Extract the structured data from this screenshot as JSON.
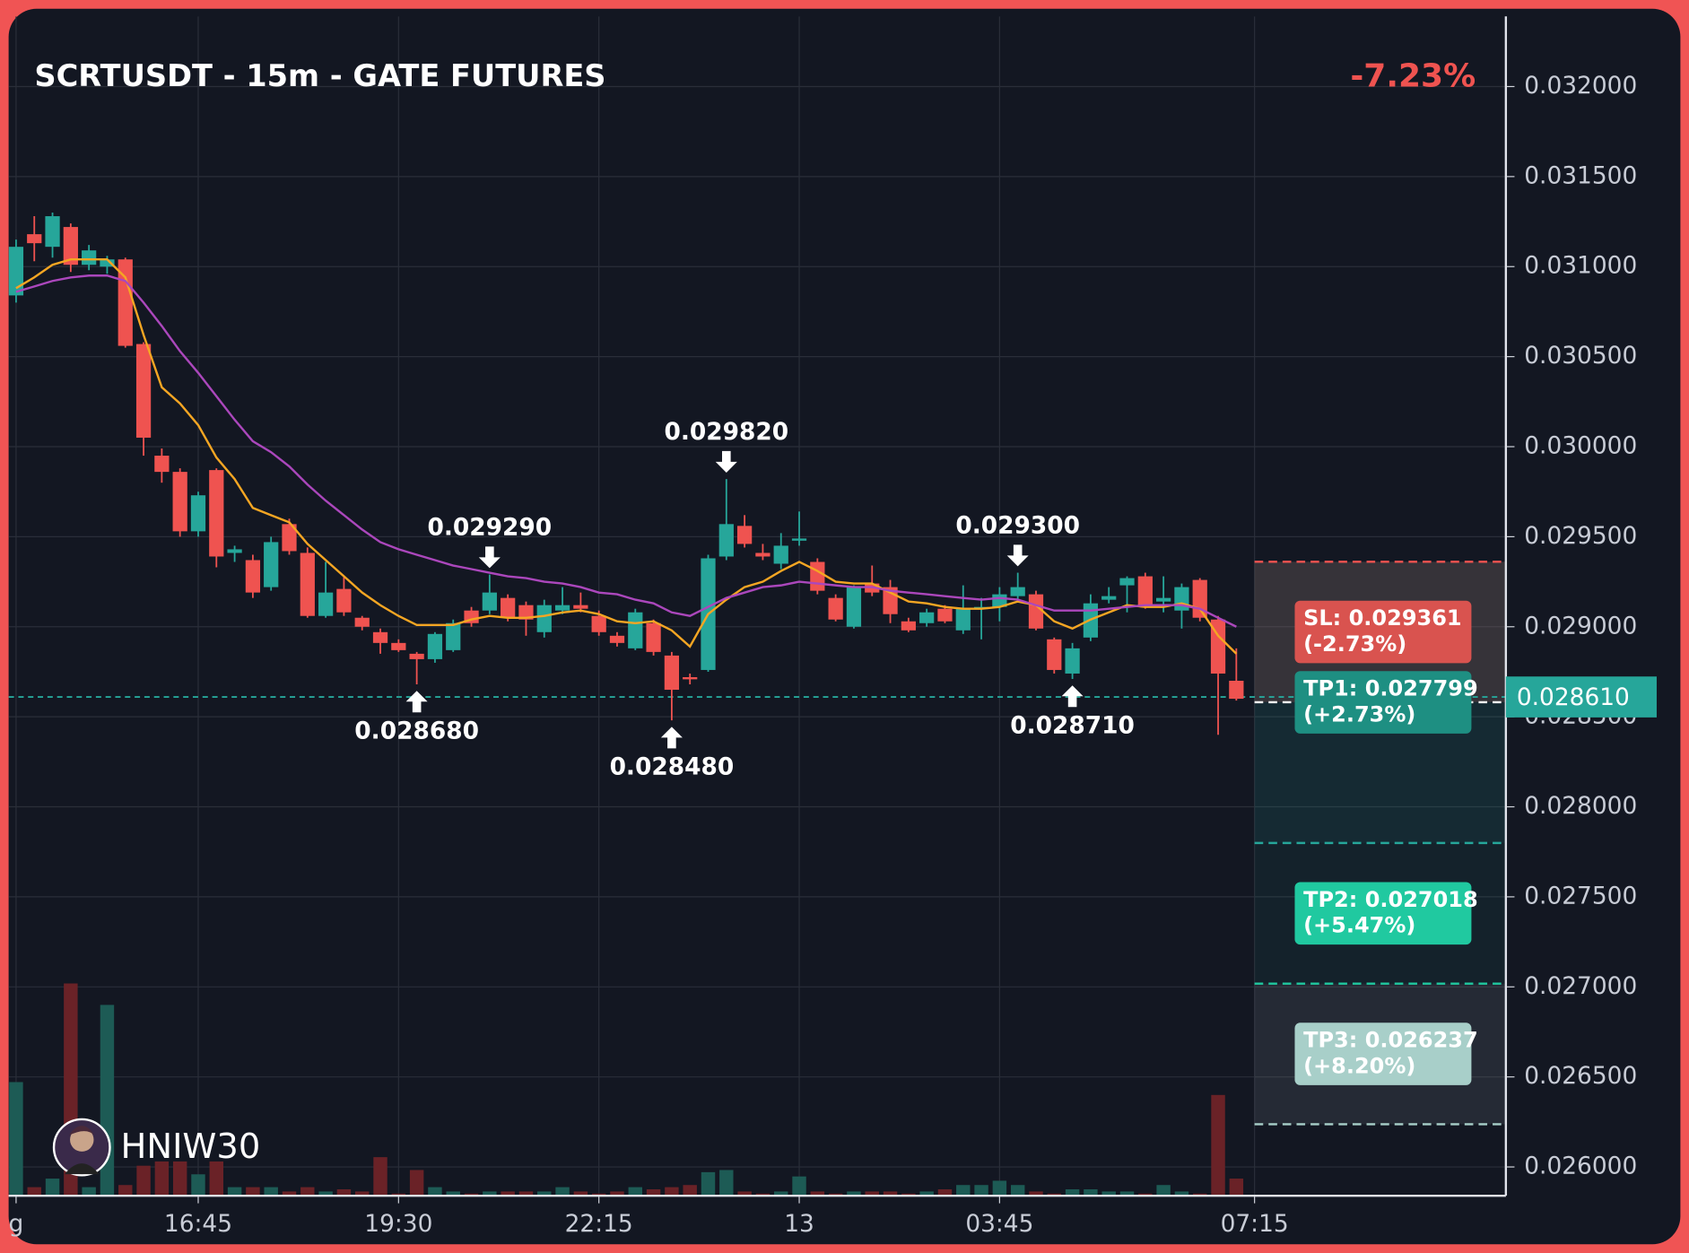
{
  "chart_data": {
    "type": "candlestick",
    "title": "SCRTUSDT - 15m - GATE FUTURES",
    "change": "-7.23%",
    "watermark": "HNIW30",
    "up_color": "#26a69a",
    "down_color": "#ef5350",
    "volume_up_color": "#1d5b55",
    "volume_down_color": "#6a2227",
    "grid": true,
    "xlim": [
      -0.41,
      81.8
    ],
    "xticks": [
      {
        "value": 0,
        "label": "g"
      },
      {
        "value": 10,
        "label": "16:45"
      },
      {
        "value": 21,
        "label": "19:30"
      },
      {
        "value": 32,
        "label": "22:15"
      },
      {
        "value": 43,
        "label": "13"
      },
      {
        "value": 54,
        "label": "03:45"
      },
      {
        "value": 68,
        "label": "07:15"
      }
    ],
    "ylim": [
      0.02584,
      0.03239
    ],
    "yticks": [
      {
        "value": 0.026,
        "label": "0.026000"
      },
      {
        "value": 0.0265,
        "label": "0.026500"
      },
      {
        "value": 0.027,
        "label": "0.027000"
      },
      {
        "value": 0.0275,
        "label": "0.027500"
      },
      {
        "value": 0.028,
        "label": "0.028000"
      },
      {
        "value": 0.0285,
        "label": "0.028500"
      },
      {
        "value": 0.029,
        "label": "0.029000"
      },
      {
        "value": 0.0295,
        "label": "0.029500"
      },
      {
        "value": 0.03,
        "label": "0.030000"
      },
      {
        "value": 0.0305,
        "label": "0.030500"
      },
      {
        "value": 0.031,
        "label": "0.031000"
      },
      {
        "value": 0.0315,
        "label": "0.031500"
      },
      {
        "value": 0.032,
        "label": "0.032000"
      }
    ],
    "candles": {
      "open": [
        0.03084,
        0.03118,
        0.03111,
        0.03122,
        0.03101,
        0.031,
        0.03104,
        0.03057,
        0.02995,
        0.02986,
        0.02953,
        0.02987,
        0.02941,
        0.02937,
        0.02922,
        0.02957,
        0.02941,
        0.02906,
        0.02921,
        0.02905,
        0.02897,
        0.02891,
        0.02885,
        0.02882,
        0.02887,
        0.02909,
        0.02909,
        0.02916,
        0.02912,
        0.02897,
        0.02909,
        0.02912,
        0.02906,
        0.02895,
        0.02888,
        0.02902,
        0.02884,
        0.02872,
        0.02876,
        0.02939,
        0.02956,
        0.02941,
        0.02935,
        0.02948,
        0.02936,
        0.02916,
        0.029,
        0.02924,
        0.02922,
        0.02903,
        0.02902,
        0.0291,
        0.02898,
        0.0291,
        0.02911,
        0.02917,
        0.02918,
        0.02893,
        0.02874,
        0.02894,
        0.02915,
        0.02923,
        0.02928,
        0.02914,
        0.02909,
        0.02926,
        0.02904,
        0.0287
      ],
      "high": [
        0.03115,
        0.03128,
        0.0313,
        0.03124,
        0.03112,
        0.03106,
        0.03105,
        0.03058,
        0.02999,
        0.02988,
        0.02975,
        0.02988,
        0.02945,
        0.0294,
        0.0295,
        0.0296,
        0.02944,
        0.02936,
        0.02928,
        0.02906,
        0.02899,
        0.02893,
        0.02886,
        0.02897,
        0.02904,
        0.02911,
        0.02929,
        0.02918,
        0.02914,
        0.02915,
        0.02922,
        0.02919,
        0.02909,
        0.02897,
        0.0291,
        0.02904,
        0.02886,
        0.02874,
        0.0294,
        0.02982,
        0.02962,
        0.02946,
        0.02952,
        0.02964,
        0.02938,
        0.02918,
        0.02923,
        0.02934,
        0.02926,
        0.02905,
        0.0291,
        0.02912,
        0.02923,
        0.02916,
        0.02922,
        0.0293,
        0.0292,
        0.02894,
        0.02891,
        0.02918,
        0.02922,
        0.02928,
        0.0293,
        0.02928,
        0.02924,
        0.02927,
        0.02906,
        0.02888
      ],
      "low": [
        0.0308,
        0.03103,
        0.03105,
        0.03097,
        0.03098,
        0.03096,
        0.03055,
        0.02995,
        0.0298,
        0.0295,
        0.0295,
        0.02933,
        0.02936,
        0.02916,
        0.0292,
        0.0294,
        0.02905,
        0.02905,
        0.02906,
        0.02898,
        0.02885,
        0.02886,
        0.02868,
        0.0288,
        0.02886,
        0.029,
        0.02907,
        0.02903,
        0.02895,
        0.02894,
        0.02907,
        0.02908,
        0.02895,
        0.02889,
        0.02887,
        0.02884,
        0.02848,
        0.02868,
        0.02875,
        0.02937,
        0.02944,
        0.02937,
        0.02932,
        0.02945,
        0.02918,
        0.02903,
        0.02899,
        0.02917,
        0.02902,
        0.02897,
        0.029,
        0.02902,
        0.02896,
        0.02893,
        0.02903,
        0.02915,
        0.02898,
        0.02874,
        0.02871,
        0.02892,
        0.02913,
        0.02908,
        0.0291,
        0.02908,
        0.02899,
        0.02903,
        0.0284,
        0.02859
      ],
      "close": [
        0.03111,
        0.03113,
        0.03128,
        0.03101,
        0.03109,
        0.03104,
        0.03056,
        0.03005,
        0.02986,
        0.02953,
        0.02973,
        0.02939,
        0.02943,
        0.02919,
        0.02947,
        0.02942,
        0.02906,
        0.02919,
        0.02908,
        0.029,
        0.02891,
        0.02887,
        0.02882,
        0.02896,
        0.02902,
        0.02902,
        0.02919,
        0.02905,
        0.02904,
        0.02912,
        0.02912,
        0.0291,
        0.02897,
        0.02891,
        0.02908,
        0.02886,
        0.02865,
        0.02871,
        0.02938,
        0.02957,
        0.02946,
        0.02939,
        0.02945,
        0.02949,
        0.0292,
        0.02904,
        0.02922,
        0.02919,
        0.02907,
        0.02898,
        0.02908,
        0.02903,
        0.0291,
        0.02911,
        0.02918,
        0.02922,
        0.02899,
        0.02876,
        0.02888,
        0.02913,
        0.02917,
        0.02927,
        0.02912,
        0.02916,
        0.02922,
        0.02905,
        0.02874,
        0.0286
      ],
      "volume": [
        53,
        4,
        8,
        99,
        4,
        89,
        5,
        14,
        16,
        16,
        10,
        16,
        4,
        4,
        4,
        2,
        4,
        2,
        3,
        2,
        18,
        1,
        12,
        4,
        2,
        1,
        2,
        2,
        2,
        2,
        4,
        2,
        1,
        2,
        4,
        3,
        4,
        5,
        11,
        12,
        2,
        1,
        2,
        9,
        2,
        1,
        2,
        2,
        2,
        1,
        2,
        3,
        5,
        5,
        7,
        5,
        2,
        1,
        3,
        3,
        2,
        2,
        1,
        5,
        2,
        1,
        47,
        8
      ]
    },
    "volume_ylim": [
      0,
      550
    ],
    "series": [
      {
        "color": "#f5a623",
        "values": [
          0.03088,
          0.03094,
          0.03101,
          0.03104,
          0.03104,
          0.03104,
          0.03094,
          0.03062,
          0.03033,
          0.03024,
          0.03012,
          0.02994,
          0.02982,
          0.02966,
          0.02962,
          0.02958,
          0.02946,
          0.02937,
          0.02928,
          0.02919,
          0.02912,
          0.02906,
          0.02901,
          0.02901,
          0.02901,
          0.02904,
          0.02906,
          0.02905,
          0.02905,
          0.02906,
          0.02908,
          0.02909,
          0.02907,
          0.02903,
          0.02902,
          0.02903,
          0.02898,
          0.02889,
          0.02907,
          0.02915,
          0.02922,
          0.02925,
          0.02931,
          0.02936,
          0.02931,
          0.02925,
          0.02924,
          0.02924,
          0.02919,
          0.02914,
          0.02913,
          0.02911,
          0.0291,
          0.0291,
          0.02911,
          0.02914,
          0.02912,
          0.02903,
          0.02899,
          0.02904,
          0.02908,
          0.02912,
          0.02911,
          0.02911,
          0.02913,
          0.0291,
          0.02895,
          0.02885
        ]
      },
      {
        "color": "#ab47bc",
        "values": [
          0.03086,
          0.03089,
          0.03092,
          0.03094,
          0.03095,
          0.03095,
          0.03092,
          0.0308,
          0.03067,
          0.03053,
          0.03041,
          0.03028,
          0.03015,
          0.03003,
          0.02997,
          0.02989,
          0.02979,
          0.0297,
          0.02962,
          0.02954,
          0.02947,
          0.02943,
          0.0294,
          0.02937,
          0.02934,
          0.02932,
          0.0293,
          0.02928,
          0.02927,
          0.02925,
          0.02924,
          0.02922,
          0.02919,
          0.02918,
          0.02915,
          0.02913,
          0.02908,
          0.02906,
          0.02911,
          0.02916,
          0.02919,
          0.02922,
          0.02923,
          0.02925,
          0.02924,
          0.02923,
          0.02922,
          0.02922,
          0.0292,
          0.02919,
          0.02918,
          0.02917,
          0.02916,
          0.02915,
          0.02916,
          0.02915,
          0.02912,
          0.02909,
          0.02909,
          0.02909,
          0.0291,
          0.02911,
          0.02912,
          0.02912,
          0.02912,
          0.0291,
          0.02905,
          0.029
        ]
      }
    ],
    "annotations": [
      {
        "value": 0.02868,
        "label": "0.028680",
        "candle": 22,
        "kind": "low"
      },
      {
        "value": 0.02929,
        "label": "0.029290",
        "candle": 26,
        "kind": "high"
      },
      {
        "value": 0.02848,
        "label": "0.028480",
        "candle": 36,
        "kind": "low"
      },
      {
        "value": 0.02982,
        "label": "0.029820",
        "candle": 39,
        "kind": "high"
      },
      {
        "value": 0.0293,
        "label": "0.029300",
        "candle": 55,
        "kind": "high"
      },
      {
        "value": 0.02871,
        "label": "0.028710",
        "candle": 58,
        "kind": "low"
      }
    ],
    "current_price": {
      "value": 0.02861,
      "label": "0.028610"
    },
    "entry": 0.028581,
    "levels": [
      {
        "label": "SL: 0.029361",
        "pct": "(-2.73%)",
        "value": 0.029361,
        "color": "#d9534f",
        "line": "#ef5350",
        "zone": "rgba(239,83,80,0.18)"
      },
      {
        "label": "TP1: 0.027799",
        "pct": "(+2.73%)",
        "value": 0.027799,
        "color": "#1e8f82",
        "line": "#26a69a",
        "zone": "rgba(38,166,154,0.14)"
      },
      {
        "label": "TP2: 0.027018",
        "pct": "(+5.47%)",
        "value": 0.027018,
        "color": "#20c9a0",
        "line": "#20c9a0",
        "zone": "rgba(38,166,154,0.08)"
      },
      {
        "label": "TP3: 0.026237",
        "pct": "(+8.20%)",
        "value": 0.026237,
        "color": "#a8cfc9",
        "line": "#a8cfc9",
        "zone": "rgba(150,160,170,0.14)"
      }
    ]
  }
}
